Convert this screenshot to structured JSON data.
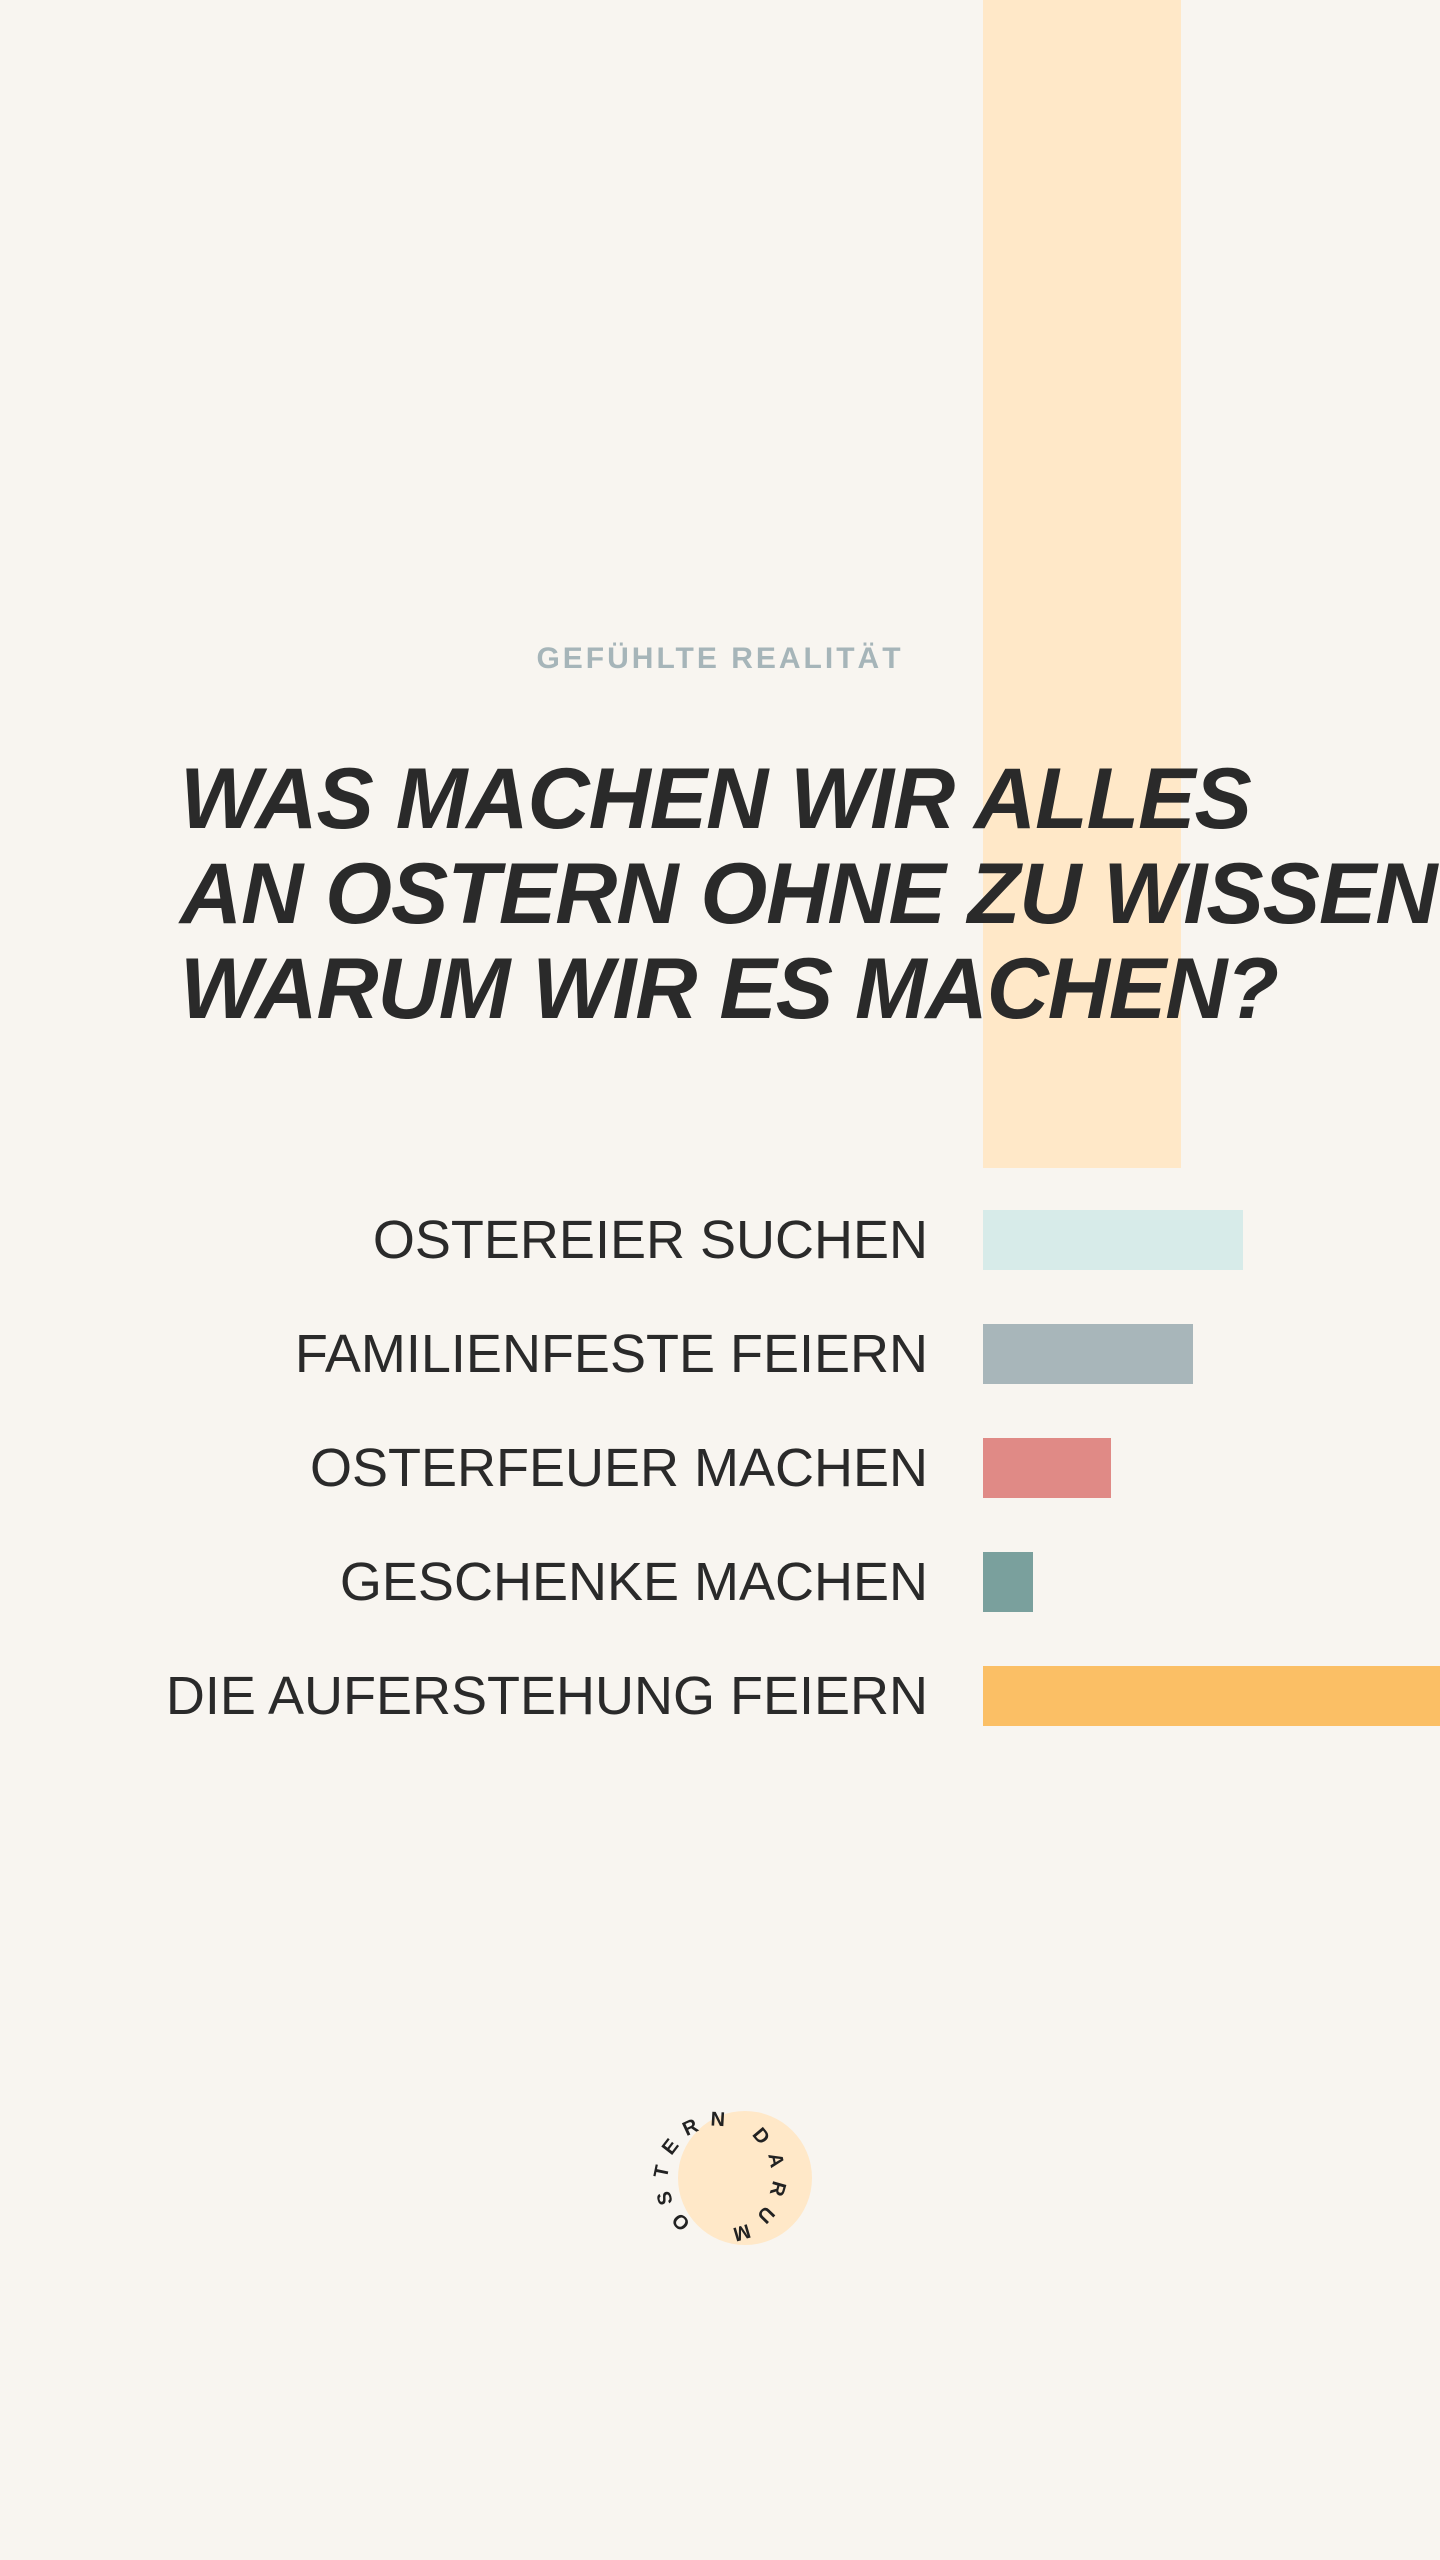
{
  "kicker": "GEFÜHLTE  REALITÄT",
  "headline": {
    "line1": "WAS MACHEN WIR ALLES",
    "line2": "AN OSTERN OHNE ZU WISSEN",
    "line3": "WARUM WIR ES MACHEN?"
  },
  "chart_data": {
    "type": "bar",
    "orientation": "horizontal",
    "categories": [
      "OSTEREIER SUCHEN",
      "FAMILIENFESTE FEIERN",
      "OSTERFEUER MACHEN",
      "GESCHENKE MACHEN",
      "DIE AUFERSTEHUNG FEIERN"
    ],
    "values": [
      0.57,
      0.46,
      0.28,
      0.11,
      1.0
    ],
    "colors": [
      "#d7ebe9",
      "#a8b6ba",
      "#e08a86",
      "#7aa09d",
      "#fbbf65"
    ],
    "title": "",
    "xlabel": "",
    "ylabel": "",
    "xlim": [
      0,
      1
    ],
    "grid": false,
    "legend": "none"
  },
  "logo": {
    "ring_text": "OSTERN DARUM",
    "circle_color": "#ffe8c8"
  },
  "colors": {
    "background": "#f8f5f0",
    "accent_column": "#ffe8c8",
    "text": "#2a2a2a",
    "kicker": "#a6b5b9"
  }
}
